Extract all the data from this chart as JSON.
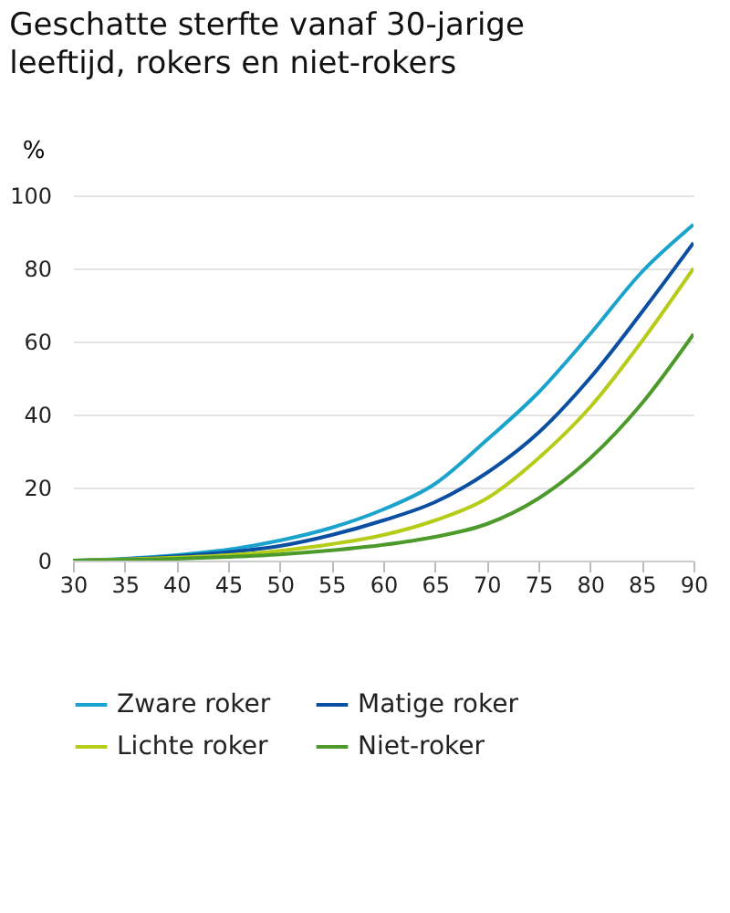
{
  "chart_data": {
    "type": "line",
    "title": "Geschatte sterfte vanaf 30-jarige leeftijd, rokers en niet-rokers",
    "ylabel": "%",
    "x": [
      30,
      35,
      40,
      45,
      50,
      55,
      60,
      65,
      70,
      75,
      80,
      85,
      90
    ],
    "series": [
      {
        "name": "Zware roker",
        "color": "#1aa3cc",
        "values": [
          0,
          0.5,
          1.5,
          3,
          5.5,
          9,
          14,
          21,
          33,
          46,
          62,
          79,
          92
        ]
      },
      {
        "name": "Matige roker",
        "color": "#0b4fa3",
        "values": [
          0,
          0.4,
          1.2,
          2.3,
          4,
          7,
          11,
          16,
          24,
          35,
          50,
          68,
          87
        ]
      },
      {
        "name": "Lichte roker",
        "color": "#b5cc18",
        "values": [
          0,
          0.3,
          0.8,
          1.5,
          2.7,
          4.5,
          7,
          11,
          17,
          28,
          42,
          60,
          80
        ]
      },
      {
        "name": "Niet-roker",
        "color": "#4c9a2a",
        "values": [
          0,
          0.2,
          0.5,
          1,
          1.7,
          2.8,
          4.3,
          6.5,
          10,
          17,
          28,
          43,
          62
        ]
      }
    ],
    "xlim": [
      30,
      90
    ],
    "xticks": [
      30,
      35,
      40,
      45,
      50,
      55,
      60,
      65,
      70,
      75,
      80,
      85,
      90
    ],
    "ylim": [
      0,
      100
    ],
    "yticks": [
      0,
      20,
      40,
      60,
      80,
      100
    ],
    "grid": "y",
    "legend": "bottom",
    "marker": "none",
    "line_style": "solid"
  }
}
